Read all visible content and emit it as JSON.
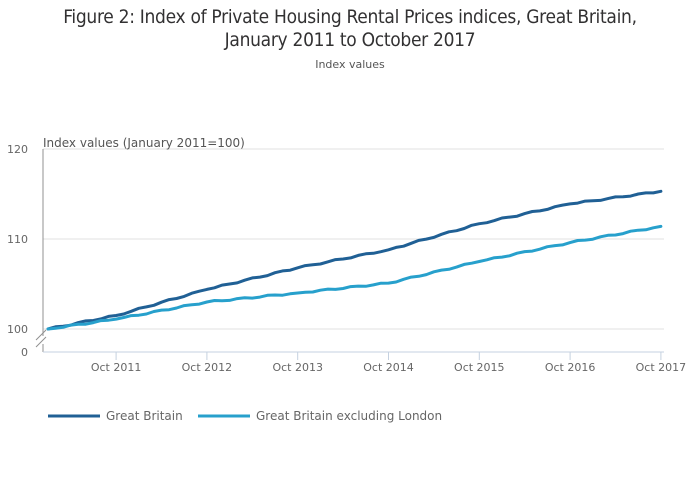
{
  "chart_data": {
    "type": "line",
    "title": "Figure 2: Index of Private Housing Rental Prices indices, Great Britain, January 2011 to October 2017",
    "title_lines": [
      "Figure 2: Index of Private Housing Rental Prices indices, Great Britain,",
      "January 2011 to October 2017"
    ],
    "subtitle": "Index values",
    "ylabel": "Index values (January 2011=100)",
    "xlabel": "",
    "ylim": [
      100,
      120
    ],
    "y_break": true,
    "y_ticks": [
      0,
      100,
      110,
      120
    ],
    "x_tick_labels": [
      "Oct 2011",
      "Oct 2012",
      "Oct 2013",
      "Oct 2014",
      "Oct 2015",
      "Oct 2016",
      "Oct 2017"
    ],
    "x_tick_month_index": [
      9,
      21,
      33,
      45,
      57,
      69,
      81
    ],
    "x_start": "Jan 2011",
    "x_end": "Oct 2017",
    "grid": true,
    "legend_position": "bottom-left",
    "anchors": {
      "months": [
        0,
        9,
        21,
        33,
        45,
        57,
        69,
        81
      ],
      "Great Britain": [
        100.0,
        101.5,
        104.4,
        106.8,
        108.8,
        111.7,
        113.9,
        115.3
      ],
      "Great Britain excluding London": [
        100.0,
        101.1,
        103.0,
        104.0,
        105.1,
        107.5,
        109.6,
        111.4
      ]
    },
    "series": [
      {
        "name": "Great Britain",
        "color": "#206095"
      },
      {
        "name": "Great Britain excluding London",
        "color": "#27a0cc"
      }
    ]
  }
}
